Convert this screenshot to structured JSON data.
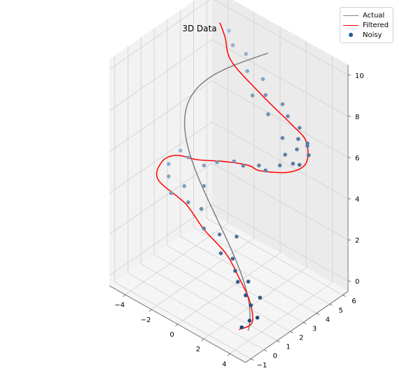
{
  "chart_data": {
    "type": "scatter",
    "title": "3D Data",
    "axes": {
      "x": {
        "ticks": [
          -4,
          -2,
          0,
          2,
          4
        ],
        "range": [
          -5.2,
          5.2
        ]
      },
      "y": {
        "ticks": [
          -1,
          0,
          1,
          2,
          3,
          4,
          5,
          6
        ],
        "range": [
          -1.4,
          6.4
        ]
      },
      "z": {
        "ticks": [
          0,
          2,
          4,
          6,
          8,
          10
        ],
        "range": [
          -0.5,
          10.5
        ]
      }
    },
    "grid": true,
    "legend_position": "top-right",
    "series": [
      {
        "name": "Actual",
        "kind": "line",
        "color": "#808080"
      },
      {
        "name": "Filtered",
        "kind": "line",
        "color": "#ff0000"
      },
      {
        "name": "Noisy",
        "kind": "scatter",
        "color": "#08306b",
        "colormap": "Blues"
      }
    ],
    "actual_curve": {
      "description_param": "t from 0 to 10",
      "x": "4*cos(pi*t/6.5)",
      "y": "0.5*t",
      "z": "t"
    },
    "filtered_points": [
      [
        3.8,
        -0.5,
        0.2
      ],
      [
        4.3,
        0.0,
        0.5
      ],
      [
        3.5,
        0.6,
        1.0
      ],
      [
        2.3,
        1.0,
        1.5
      ],
      [
        0.9,
        1.4,
        2.0
      ],
      [
        -0.9,
        1.5,
        2.5
      ],
      [
        -2.6,
        1.8,
        3.0
      ],
      [
        -4.6,
        1.7,
        3.5
      ],
      [
        -4.9,
        2.3,
        4.0
      ],
      [
        -4.3,
        2.8,
        4.3
      ],
      [
        -2.9,
        3.0,
        4.5
      ],
      [
        -1.0,
        3.2,
        5.0
      ],
      [
        0.6,
        3.4,
        5.3
      ],
      [
        1.8,
        3.1,
        5.6
      ],
      [
        3.6,
        3.5,
        6.0
      ],
      [
        4.4,
        4.0,
        6.5
      ],
      [
        3.7,
        4.7,
        7.0
      ],
      [
        2.7,
        4.6,
        7.5
      ],
      [
        0.5,
        4.5,
        8.2
      ],
      [
        -1.8,
        4.5,
        9.0
      ],
      [
        -2.8,
        5.0,
        9.6
      ],
      [
        -3.4,
        5.2,
        10.0
      ]
    ],
    "noisy_points": [
      [
        3.9,
        -0.4,
        0.3
      ],
      [
        4.2,
        -0.1,
        0.6
      ],
      [
        4.6,
        0.1,
        0.8
      ],
      [
        3.7,
        0.5,
        0.9
      ],
      [
        4.0,
        0.9,
        1.2
      ],
      [
        3.5,
        0.3,
        1.4
      ],
      [
        2.9,
        1.1,
        1.5
      ],
      [
        2.2,
        0.8,
        1.9
      ],
      [
        1.6,
        1.2,
        2.1
      ],
      [
        0.9,
        1.0,
        2.2
      ],
      [
        0.2,
        1.6,
        2.6
      ],
      [
        -0.7,
        1.3,
        2.7
      ],
      [
        -1.5,
        1.9,
        3.1
      ],
      [
        -2.2,
        1.6,
        3.3
      ],
      [
        -3.1,
        2.2,
        3.5
      ],
      [
        -4.1,
        2.0,
        3.7
      ],
      [
        -4.6,
        2.5,
        3.9
      ],
      [
        -4.3,
        3.1,
        4.4
      ],
      [
        -3.3,
        2.7,
        4.6
      ],
      [
        -2.4,
        3.0,
        4.4
      ],
      [
        -1.3,
        2.9,
        5.0
      ],
      [
        -0.5,
        3.4,
        5.1
      ],
      [
        0.4,
        3.2,
        5.3
      ],
      [
        1.3,
        3.5,
        5.5
      ],
      [
        2.0,
        3.3,
        5.6
      ],
      [
        2.8,
        3.6,
        6.0
      ],
      [
        3.5,
        3.9,
        6.2
      ],
      [
        4.1,
        3.8,
        6.4
      ],
      [
        4.4,
        4.2,
        6.8
      ],
      [
        4.0,
        4.5,
        7.1
      ],
      [
        3.6,
        4.2,
        7.3
      ],
      [
        3.1,
        4.8,
        7.4
      ],
      [
        2.4,
        4.6,
        7.8
      ],
      [
        1.7,
        4.9,
        8.0
      ],
      [
        0.8,
        4.5,
        8.3
      ],
      [
        0.1,
        5.0,
        8.6
      ],
      [
        -0.8,
        4.7,
        8.8
      ],
      [
        -1.4,
        5.2,
        9.2
      ],
      [
        -2.1,
        4.9,
        9.5
      ],
      [
        -2.9,
        5.4,
        9.7
      ],
      [
        3.3,
        4.4,
        6.6
      ],
      [
        3.9,
        4.6,
        6.9
      ],
      [
        3.0,
        3.8,
        6.5
      ],
      [
        2.5,
        4.1,
        7.0
      ],
      [
        1.2,
        4.3,
        7.6
      ],
      [
        -0.1,
        4.4,
        8.0
      ],
      [
        2.6,
        0.6,
        1.6
      ],
      [
        1.3,
        1.8,
        2.8
      ],
      [
        -3.6,
        1.7,
        3.2
      ],
      [
        -1.9,
        2.5,
        3.8
      ]
    ]
  }
}
